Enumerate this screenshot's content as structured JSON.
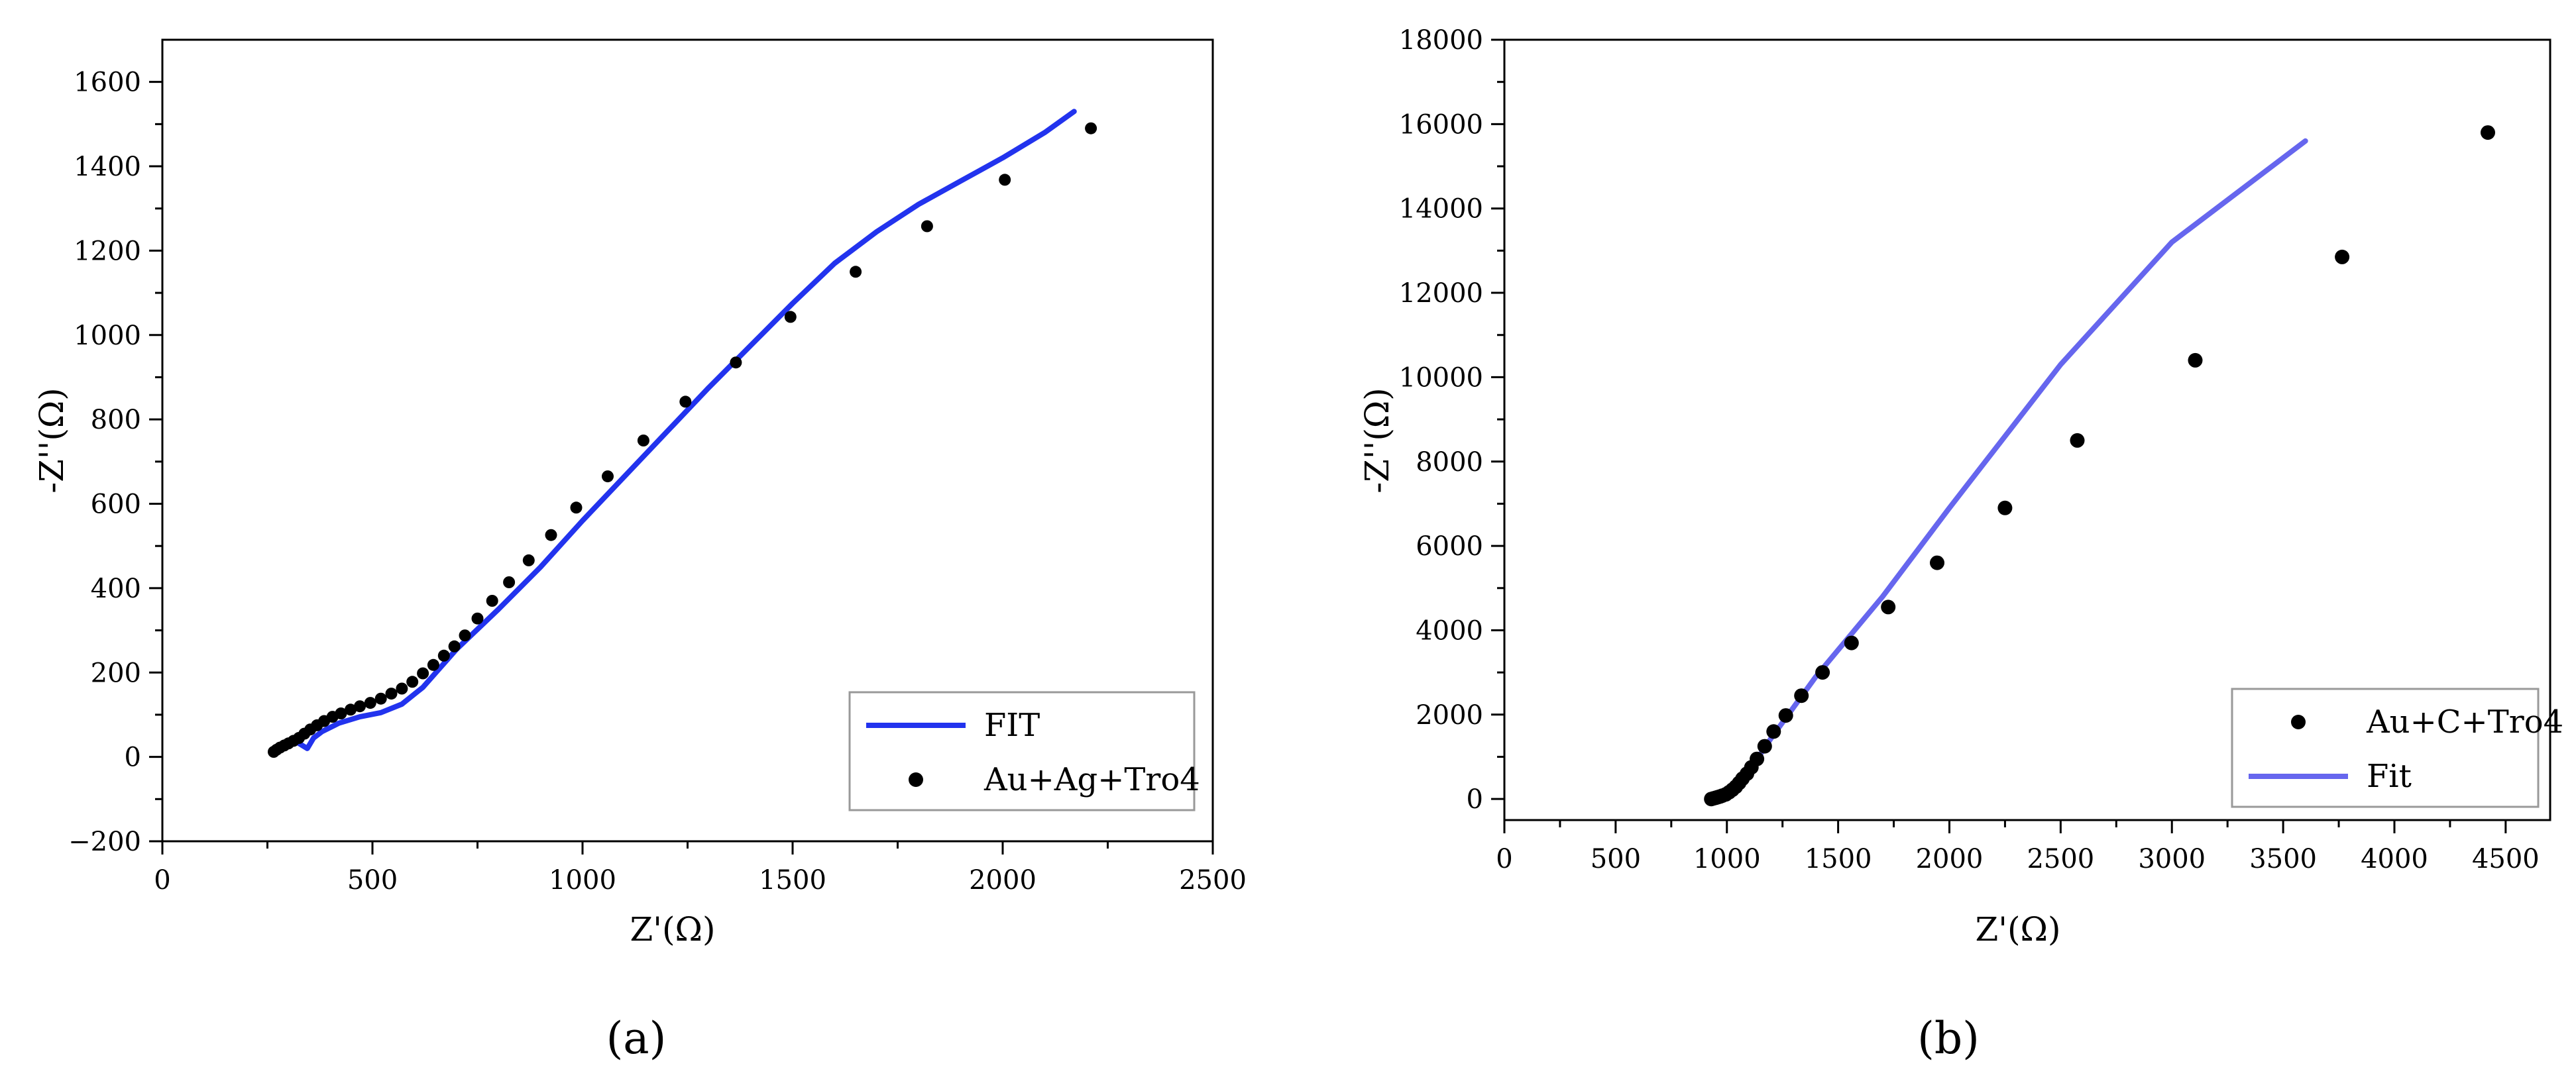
{
  "chart_data": [
    {
      "type": "scatter",
      "panel_label": "(a)",
      "xlabel": "Z'(Ω)",
      "ylabel": "-Z''(Ω)",
      "xlim": [
        0,
        2500
      ],
      "ylim": [
        -200,
        1700
      ],
      "xticks": [
        0,
        500,
        1000,
        1500,
        2000,
        2500
      ],
      "yticks": [
        -200,
        0,
        200,
        400,
        600,
        800,
        1000,
        1200,
        1400,
        1600
      ],
      "legend_position": "bottom-right",
      "series": [
        {
          "name": "FIT",
          "kind": "line",
          "color": "#2233ee",
          "points": [
            [
              265,
              15
            ],
            [
              290,
              25
            ],
            [
              320,
              35
            ],
            [
              345,
              20
            ],
            [
              360,
              45
            ],
            [
              380,
              60
            ],
            [
              420,
              80
            ],
            [
              470,
              95
            ],
            [
              520,
              105
            ],
            [
              570,
              125
            ],
            [
              620,
              165
            ],
            [
              700,
              255
            ],
            [
              800,
              350
            ],
            [
              900,
              450
            ],
            [
              1000,
              560
            ],
            [
              1100,
              665
            ],
            [
              1200,
              770
            ],
            [
              1300,
              875
            ],
            [
              1400,
              975
            ],
            [
              1500,
              1075
            ],
            [
              1600,
              1170
            ],
            [
              1700,
              1245
            ],
            [
              1800,
              1310
            ],
            [
              1900,
              1365
            ],
            [
              2000,
              1420
            ],
            [
              2100,
              1480
            ],
            [
              2170,
              1530
            ]
          ]
        },
        {
          "name": "Au+Ag+Tro4",
          "kind": "scatter",
          "color": "#000000",
          "points": [
            [
              265,
              12
            ],
            [
              272,
              17
            ],
            [
              280,
              22
            ],
            [
              290,
              27
            ],
            [
              300,
              32
            ],
            [
              312,
              38
            ],
            [
              325,
              45
            ],
            [
              338,
              55
            ],
            [
              352,
              65
            ],
            [
              368,
              75
            ],
            [
              385,
              85
            ],
            [
              405,
              95
            ],
            [
              425,
              103
            ],
            [
              448,
              112
            ],
            [
              470,
              120
            ],
            [
              495,
              128
            ],
            [
              520,
              138
            ],
            [
              545,
              150
            ],
            [
              570,
              162
            ],
            [
              595,
              178
            ],
            [
              620,
              198
            ],
            [
              645,
              218
            ],
            [
              670,
              240
            ],
            [
              695,
              262
            ],
            [
              720,
              288
            ],
            [
              750,
              328
            ],
            [
              785,
              370
            ],
            [
              825,
              414
            ],
            [
              872,
              466
            ],
            [
              925,
              526
            ],
            [
              985,
              591
            ],
            [
              1060,
              665
            ],
            [
              1145,
              750
            ],
            [
              1245,
              842
            ],
            [
              1365,
              935
            ],
            [
              1495,
              1043
            ],
            [
              1650,
              1150
            ],
            [
              1820,
              1258
            ],
            [
              2005,
              1368
            ],
            [
              2210,
              1490
            ]
          ]
        }
      ]
    },
    {
      "type": "scatter",
      "panel_label": "(b)",
      "xlabel": "Z'(Ω)",
      "ylabel": "-Z''(Ω)",
      "xlim": [
        0,
        4700
      ],
      "ylim": [
        -500,
        18000
      ],
      "xticks": [
        0,
        500,
        1000,
        1500,
        2000,
        2500,
        3000,
        3500,
        4000,
        4500
      ],
      "yticks": [
        0,
        2000,
        4000,
        6000,
        8000,
        10000,
        12000,
        14000,
        16000,
        18000
      ],
      "legend_position": "bottom-right",
      "series": [
        {
          "name": "Au+C+Tro4",
          "kind": "scatter",
          "color": "#000000",
          "points": [
            [
              930,
              0
            ],
            [
              940,
              15
            ],
            [
              950,
              30
            ],
            [
              960,
              45
            ],
            [
              970,
              60
            ],
            [
              980,
              80
            ],
            [
              995,
              110
            ],
            [
              1010,
              160
            ],
            [
              1025,
              220
            ],
            [
              1040,
              290
            ],
            [
              1055,
              380
            ],
            [
              1070,
              480
            ],
            [
              1090,
              600
            ],
            [
              1110,
              750
            ],
            [
              1135,
              950
            ],
            [
              1170,
              1250
            ],
            [
              1210,
              1600
            ],
            [
              1265,
              1980
            ],
            [
              1335,
              2450
            ],
            [
              1430,
              3000
            ],
            [
              1560,
              3700
            ],
            [
              1725,
              4550
            ],
            [
              1945,
              5600
            ],
            [
              2250,
              6900
            ],
            [
              2575,
              8500
            ],
            [
              3105,
              10400
            ],
            [
              3765,
              12850
            ],
            [
              4420,
              15800
            ]
          ]
        },
        {
          "name": "Fit",
          "kind": "line",
          "color": "#6666ee",
          "points": [
            [
              930,
              0
            ],
            [
              960,
              30
            ],
            [
              1000,
              100
            ],
            [
              1040,
              280
            ],
            [
              1080,
              520
            ],
            [
              1130,
              900
            ],
            [
              1200,
              1450
            ],
            [
              1400,
              2900
            ],
            [
              1700,
              4800
            ],
            [
              2000,
              6900
            ],
            [
              2500,
              10300
            ],
            [
              3000,
              13200
            ],
            [
              3600,
              15600
            ]
          ]
        }
      ]
    }
  ]
}
